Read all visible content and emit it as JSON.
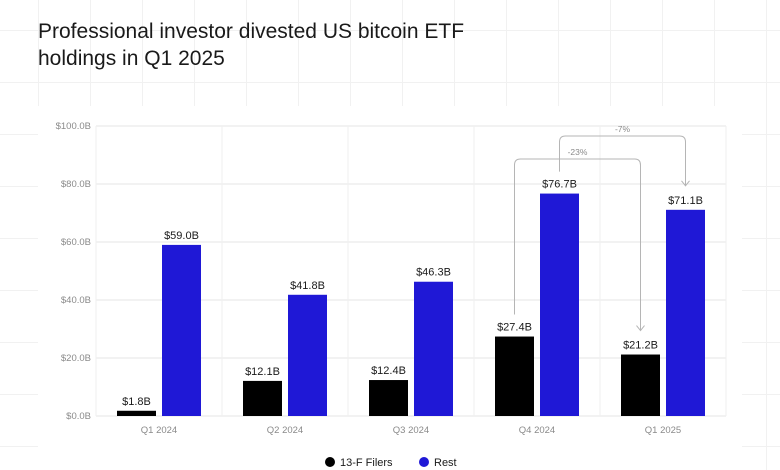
{
  "title": "Professional investor divested US bitcoin ETF holdings in Q1 2025",
  "colors": {
    "series_0": "#000000",
    "series_1": "#1f18d6",
    "annotation": "#b5b5b5"
  },
  "chart_data": {
    "type": "bar",
    "categories": [
      "Q1 2024",
      "Q2 2024",
      "Q3 2024",
      "Q4 2024",
      "Q1 2025"
    ],
    "series": [
      {
        "name": "13-F Filers",
        "values": [
          1.8,
          12.1,
          12.4,
          27.4,
          21.2
        ],
        "labels": [
          "$1.8B",
          "$12.1B",
          "$12.4B",
          "$27.4B",
          "$21.2B"
        ]
      },
      {
        "name": "Rest",
        "values": [
          59.0,
          41.8,
          46.3,
          76.7,
          71.1
        ],
        "labels": [
          "$59.0B",
          "$41.8B",
          "$46.3B",
          "$76.7B",
          "$71.1B"
        ]
      }
    ],
    "ylim": [
      0,
      100
    ],
    "yticks": [
      0,
      20,
      40,
      60,
      80,
      100
    ],
    "ytick_labels": [
      "$0.0B",
      "$20.0B",
      "$40.0B",
      "$60.0B",
      "$80.0B",
      "$100.0B"
    ],
    "grid": true,
    "legend_position": "bottom-center",
    "annotations": [
      {
        "text": "-23%",
        "from_category": "Q4 2024",
        "to_category": "Q1 2025",
        "series": "13-F Filers"
      },
      {
        "text": "-7%",
        "from_category": "Q4 2024",
        "to_category": "Q1 2025",
        "series": "Rest"
      }
    ]
  }
}
